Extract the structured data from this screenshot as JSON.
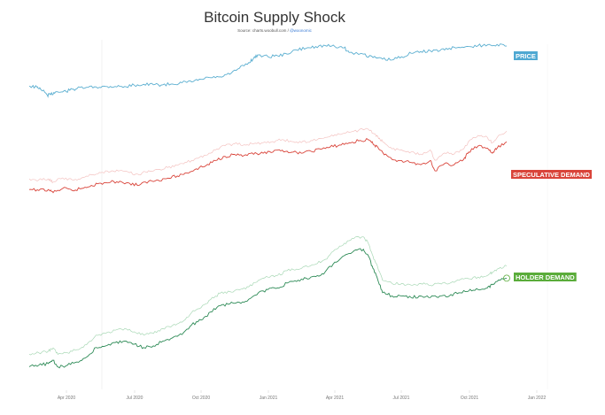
{
  "chart_data": {
    "type": "line",
    "title": "Bitcoin Supply Shock",
    "subtitle": {
      "prefix": "Source: charts.woobull.com / ",
      "handle": "@woonomic"
    },
    "x_axis": {
      "ticks": [
        "Apr 2020",
        "Jul 2020",
        "Oct 2020",
        "Jan 2021",
        "Apr 2021",
        "Jul 2021",
        "Oct 2021",
        "Jan 2022"
      ]
    },
    "grid": false,
    "legend": "labels at right end of each series",
    "series": [
      {
        "name": "PRICE",
        "color": "#5aaed0",
        "label_bg": "#4ea8d2",
        "points": [
          [
            0,
            0.55
          ],
          [
            0.012,
            0.56
          ],
          [
            0.022,
            0.57
          ],
          [
            0.038,
            0.66
          ],
          [
            0.045,
            0.65
          ],
          [
            0.055,
            0.62
          ],
          [
            0.07,
            0.62
          ],
          [
            0.085,
            0.6
          ],
          [
            0.1,
            0.58
          ],
          [
            0.12,
            0.565
          ],
          [
            0.14,
            0.56
          ],
          [
            0.16,
            0.555
          ],
          [
            0.18,
            0.555
          ],
          [
            0.2,
            0.555
          ],
          [
            0.22,
            0.54
          ],
          [
            0.24,
            0.53
          ],
          [
            0.26,
            0.535
          ],
          [
            0.28,
            0.535
          ],
          [
            0.3,
            0.525
          ],
          [
            0.32,
            0.51
          ],
          [
            0.34,
            0.5
          ],
          [
            0.36,
            0.47
          ],
          [
            0.38,
            0.45
          ],
          [
            0.4,
            0.44
          ],
          [
            0.42,
            0.41
          ],
          [
            0.44,
            0.34
          ],
          [
            0.46,
            0.27
          ],
          [
            0.47,
            0.22
          ],
          [
            0.48,
            0.18
          ],
          [
            0.5,
            0.2
          ],
          [
            0.52,
            0.19
          ],
          [
            0.54,
            0.17
          ],
          [
            0.56,
            0.12
          ],
          [
            0.58,
            0.1
          ],
          [
            0.6,
            0.08
          ],
          [
            0.62,
            0.07
          ],
          [
            0.64,
            0.08
          ],
          [
            0.66,
            0.095
          ],
          [
            0.67,
            0.15
          ],
          [
            0.7,
            0.17
          ],
          [
            0.72,
            0.21
          ],
          [
            0.74,
            0.23
          ],
          [
            0.76,
            0.24
          ],
          [
            0.78,
            0.2
          ],
          [
            0.8,
            0.16
          ],
          [
            0.82,
            0.14
          ],
          [
            0.84,
            0.13
          ],
          [
            0.86,
            0.13
          ],
          [
            0.88,
            0.1
          ],
          [
            0.9,
            0.09
          ],
          [
            0.92,
            0.08
          ],
          [
            0.94,
            0.07
          ],
          [
            0.96,
            0.06
          ],
          [
            0.98,
            0.055
          ],
          [
            1.0,
            0.075
          ]
        ]
      },
      {
        "name": "SPECULATIVE DEMAND",
        "color": "#d9443a",
        "label_bg": "#d9443a",
        "points": [
          [
            0,
            0.48
          ],
          [
            0.02,
            0.49
          ],
          [
            0.04,
            0.48
          ],
          [
            0.05,
            0.51
          ],
          [
            0.07,
            0.47
          ],
          [
            0.09,
            0.49
          ],
          [
            0.11,
            0.47
          ],
          [
            0.13,
            0.44
          ],
          [
            0.15,
            0.42
          ],
          [
            0.17,
            0.41
          ],
          [
            0.19,
            0.4
          ],
          [
            0.21,
            0.42
          ],
          [
            0.23,
            0.44
          ],
          [
            0.25,
            0.4
          ],
          [
            0.27,
            0.39
          ],
          [
            0.29,
            0.37
          ],
          [
            0.31,
            0.35
          ],
          [
            0.33,
            0.32
          ],
          [
            0.35,
            0.28
          ],
          [
            0.37,
            0.25
          ],
          [
            0.39,
            0.2
          ],
          [
            0.41,
            0.16
          ],
          [
            0.43,
            0.14
          ],
          [
            0.45,
            0.15
          ],
          [
            0.47,
            0.14
          ],
          [
            0.49,
            0.13
          ],
          [
            0.51,
            0.12
          ],
          [
            0.53,
            0.1
          ],
          [
            0.55,
            0.12
          ],
          [
            0.57,
            0.13
          ],
          [
            0.59,
            0.11
          ],
          [
            0.61,
            0.09
          ],
          [
            0.63,
            0.07
          ],
          [
            0.65,
            0.05
          ],
          [
            0.67,
            0.03
          ],
          [
            0.69,
            0.01
          ],
          [
            0.71,
            0.0
          ],
          [
            0.72,
            0.04
          ],
          [
            0.73,
            0.07
          ],
          [
            0.74,
            0.12
          ],
          [
            0.76,
            0.19
          ],
          [
            0.78,
            0.2
          ],
          [
            0.8,
            0.22
          ],
          [
            0.82,
            0.24
          ],
          [
            0.84,
            0.2
          ],
          [
            0.85,
            0.3
          ],
          [
            0.87,
            0.23
          ],
          [
            0.89,
            0.24
          ],
          [
            0.91,
            0.19
          ],
          [
            0.92,
            0.12
          ],
          [
            0.94,
            0.06
          ],
          [
            0.96,
            0.08
          ],
          [
            0.97,
            0.13
          ],
          [
            0.98,
            0.08
          ],
          [
            1.0,
            0.02
          ]
        ]
      },
      {
        "name": "HOLDER DEMAND",
        "color": "#2e8b57",
        "label_bg": "#5aac3a",
        "points": [
          [
            0,
            0.86
          ],
          [
            0.02,
            0.85
          ],
          [
            0.04,
            0.84
          ],
          [
            0.05,
            0.82
          ],
          [
            0.06,
            0.86
          ],
          [
            0.08,
            0.85
          ],
          [
            0.1,
            0.83
          ],
          [
            0.12,
            0.8
          ],
          [
            0.14,
            0.74
          ],
          [
            0.16,
            0.73
          ],
          [
            0.18,
            0.71
          ],
          [
            0.2,
            0.7
          ],
          [
            0.22,
            0.72
          ],
          [
            0.24,
            0.74
          ],
          [
            0.26,
            0.73
          ],
          [
            0.28,
            0.7
          ],
          [
            0.3,
            0.68
          ],
          [
            0.32,
            0.66
          ],
          [
            0.34,
            0.6
          ],
          [
            0.36,
            0.57
          ],
          [
            0.38,
            0.52
          ],
          [
            0.4,
            0.48
          ],
          [
            0.42,
            0.47
          ],
          [
            0.44,
            0.46
          ],
          [
            0.46,
            0.44
          ],
          [
            0.48,
            0.4
          ],
          [
            0.5,
            0.38
          ],
          [
            0.52,
            0.37
          ],
          [
            0.54,
            0.34
          ],
          [
            0.56,
            0.33
          ],
          [
            0.58,
            0.31
          ],
          [
            0.6,
            0.3
          ],
          [
            0.62,
            0.27
          ],
          [
            0.64,
            0.21
          ],
          [
            0.66,
            0.17
          ],
          [
            0.68,
            0.14
          ],
          [
            0.7,
            0.13
          ],
          [
            0.71,
            0.17
          ],
          [
            0.72,
            0.25
          ],
          [
            0.73,
            0.32
          ],
          [
            0.74,
            0.4
          ],
          [
            0.76,
            0.42
          ],
          [
            0.78,
            0.42
          ],
          [
            0.8,
            0.43
          ],
          [
            0.82,
            0.42
          ],
          [
            0.84,
            0.43
          ],
          [
            0.86,
            0.42
          ],
          [
            0.88,
            0.42
          ],
          [
            0.9,
            0.4
          ],
          [
            0.92,
            0.39
          ],
          [
            0.94,
            0.38
          ],
          [
            0.96,
            0.37
          ],
          [
            0.97,
            0.35
          ],
          [
            0.98,
            0.33
          ],
          [
            1.0,
            0.31
          ]
        ]
      }
    ]
  }
}
